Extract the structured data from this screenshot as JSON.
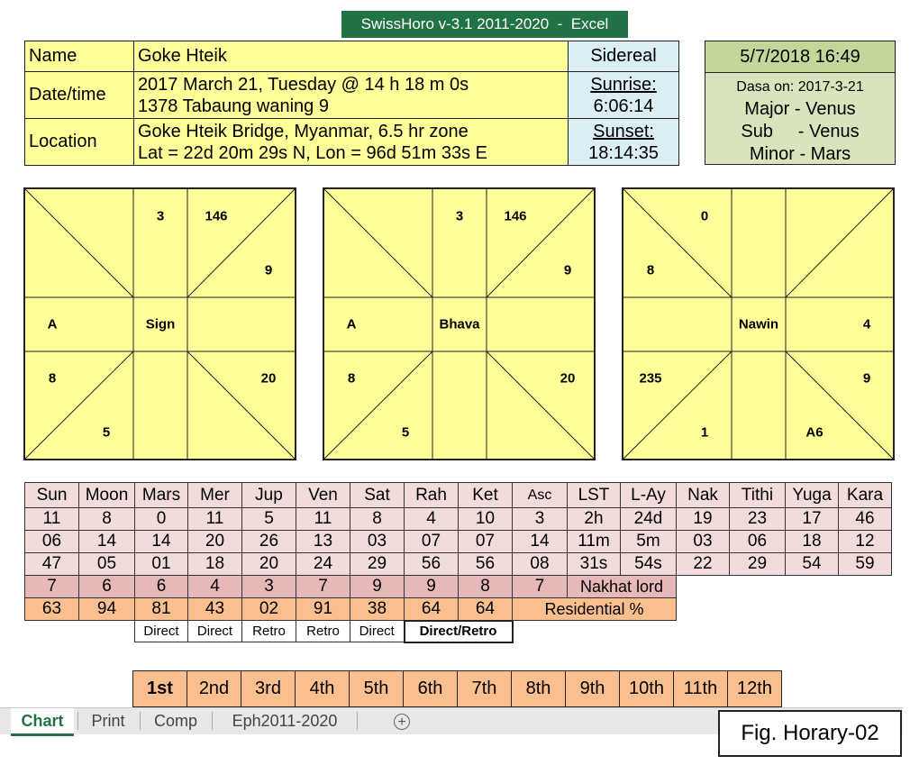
{
  "window": {
    "title": "SwissHoro v-3.1 2011-2020  -  Excel"
  },
  "info": {
    "name_label": "Name",
    "name_value": "Goke Hteik",
    "date_label": "Date/time",
    "date_line1": "2017 March 21, Tuesday @ 14 h 18 m 0s",
    "date_line2": "1378 Tabaung waning 9",
    "location_label": "Location",
    "location_line1": "Goke Hteik Bridge, Myanmar,  6.5 hr zone",
    "location_line2": "Lat = 22d 20m 29s N, Lon = 96d 51m 33s E",
    "mode": "Sidereal",
    "sunrise_label": "Sunrise:",
    "sunrise_value": "6:06:14",
    "sunset_label": "Sunset:",
    "sunset_value": "18:14:35"
  },
  "dasa": {
    "datetime": "5/7/2018 16:49",
    "on": "Dasa on: 2017-3-21",
    "major": "Major - Venus",
    "sub": "Sub     - Venus",
    "minor": "Minor - Mars"
  },
  "charts": [
    {
      "center": "Sign",
      "labels": [
        "3",
        "146",
        "9",
        "A",
        "8",
        "20",
        "5"
      ]
    },
    {
      "center": "Bhava",
      "labels": [
        "3",
        "146",
        "9",
        "A",
        "8",
        "20",
        "5"
      ]
    },
    {
      "center": "Nawin",
      "labels": [
        "0",
        "8",
        "4",
        "235",
        "9",
        "1",
        "A6"
      ]
    }
  ],
  "table": {
    "headers": [
      "Sun",
      "Moon",
      "Mars",
      "Mer",
      "Jup",
      "Ven",
      "Sat",
      "Rah",
      "Ket",
      "Asc",
      "LST",
      "L-Ay",
      "Nak",
      "Tithi",
      "Yuga",
      "Kara"
    ],
    "rows": [
      [
        "11",
        "8",
        "0",
        "11",
        "5",
        "11",
        "8",
        "4",
        "10",
        "3",
        "2h",
        "24d",
        "19",
        "23",
        "17",
        "46"
      ],
      [
        "06",
        "14",
        "14",
        "20",
        "26",
        "13",
        "03",
        "07",
        "07",
        "14",
        "11m",
        "5m",
        "03",
        "06",
        "18",
        "12"
      ],
      [
        "47",
        "05",
        "01",
        "18",
        "20",
        "24",
        "29",
        "56",
        "56",
        "08",
        "31s",
        "54s",
        "22",
        "29",
        "54",
        "59"
      ]
    ],
    "nakhat": [
      "7",
      "6",
      "6",
      "4",
      "3",
      "7",
      "9",
      "9",
      "8",
      "7"
    ],
    "nakhat_label": "Nakhat lord",
    "residential": [
      "63",
      "94",
      "81",
      "43",
      "02",
      "91",
      "38",
      "64",
      "64"
    ],
    "residential_label": "Residential %",
    "motion": [
      "Direct",
      "Direct",
      "Retro",
      "Retro",
      "Direct"
    ],
    "motion_label": "Direct/Retro"
  },
  "houses": [
    "1st",
    "2nd",
    "3rd",
    "4th",
    "5th",
    "6th",
    "7th",
    "8th",
    "9th",
    "10th",
    "11th",
    "12th"
  ],
  "sheet_tabs": [
    "Chart",
    "Print",
    "Comp",
    "Eph2011-2020"
  ],
  "new_sheet_icon": "plus-circle-icon",
  "figure_label": "Fig. Horary-02",
  "colors": {
    "excel_green": "#217346",
    "yellow": "#ffff99",
    "pink": "#f2dcdb",
    "orange": "#fabf8f",
    "green": "#d8e4bc"
  }
}
